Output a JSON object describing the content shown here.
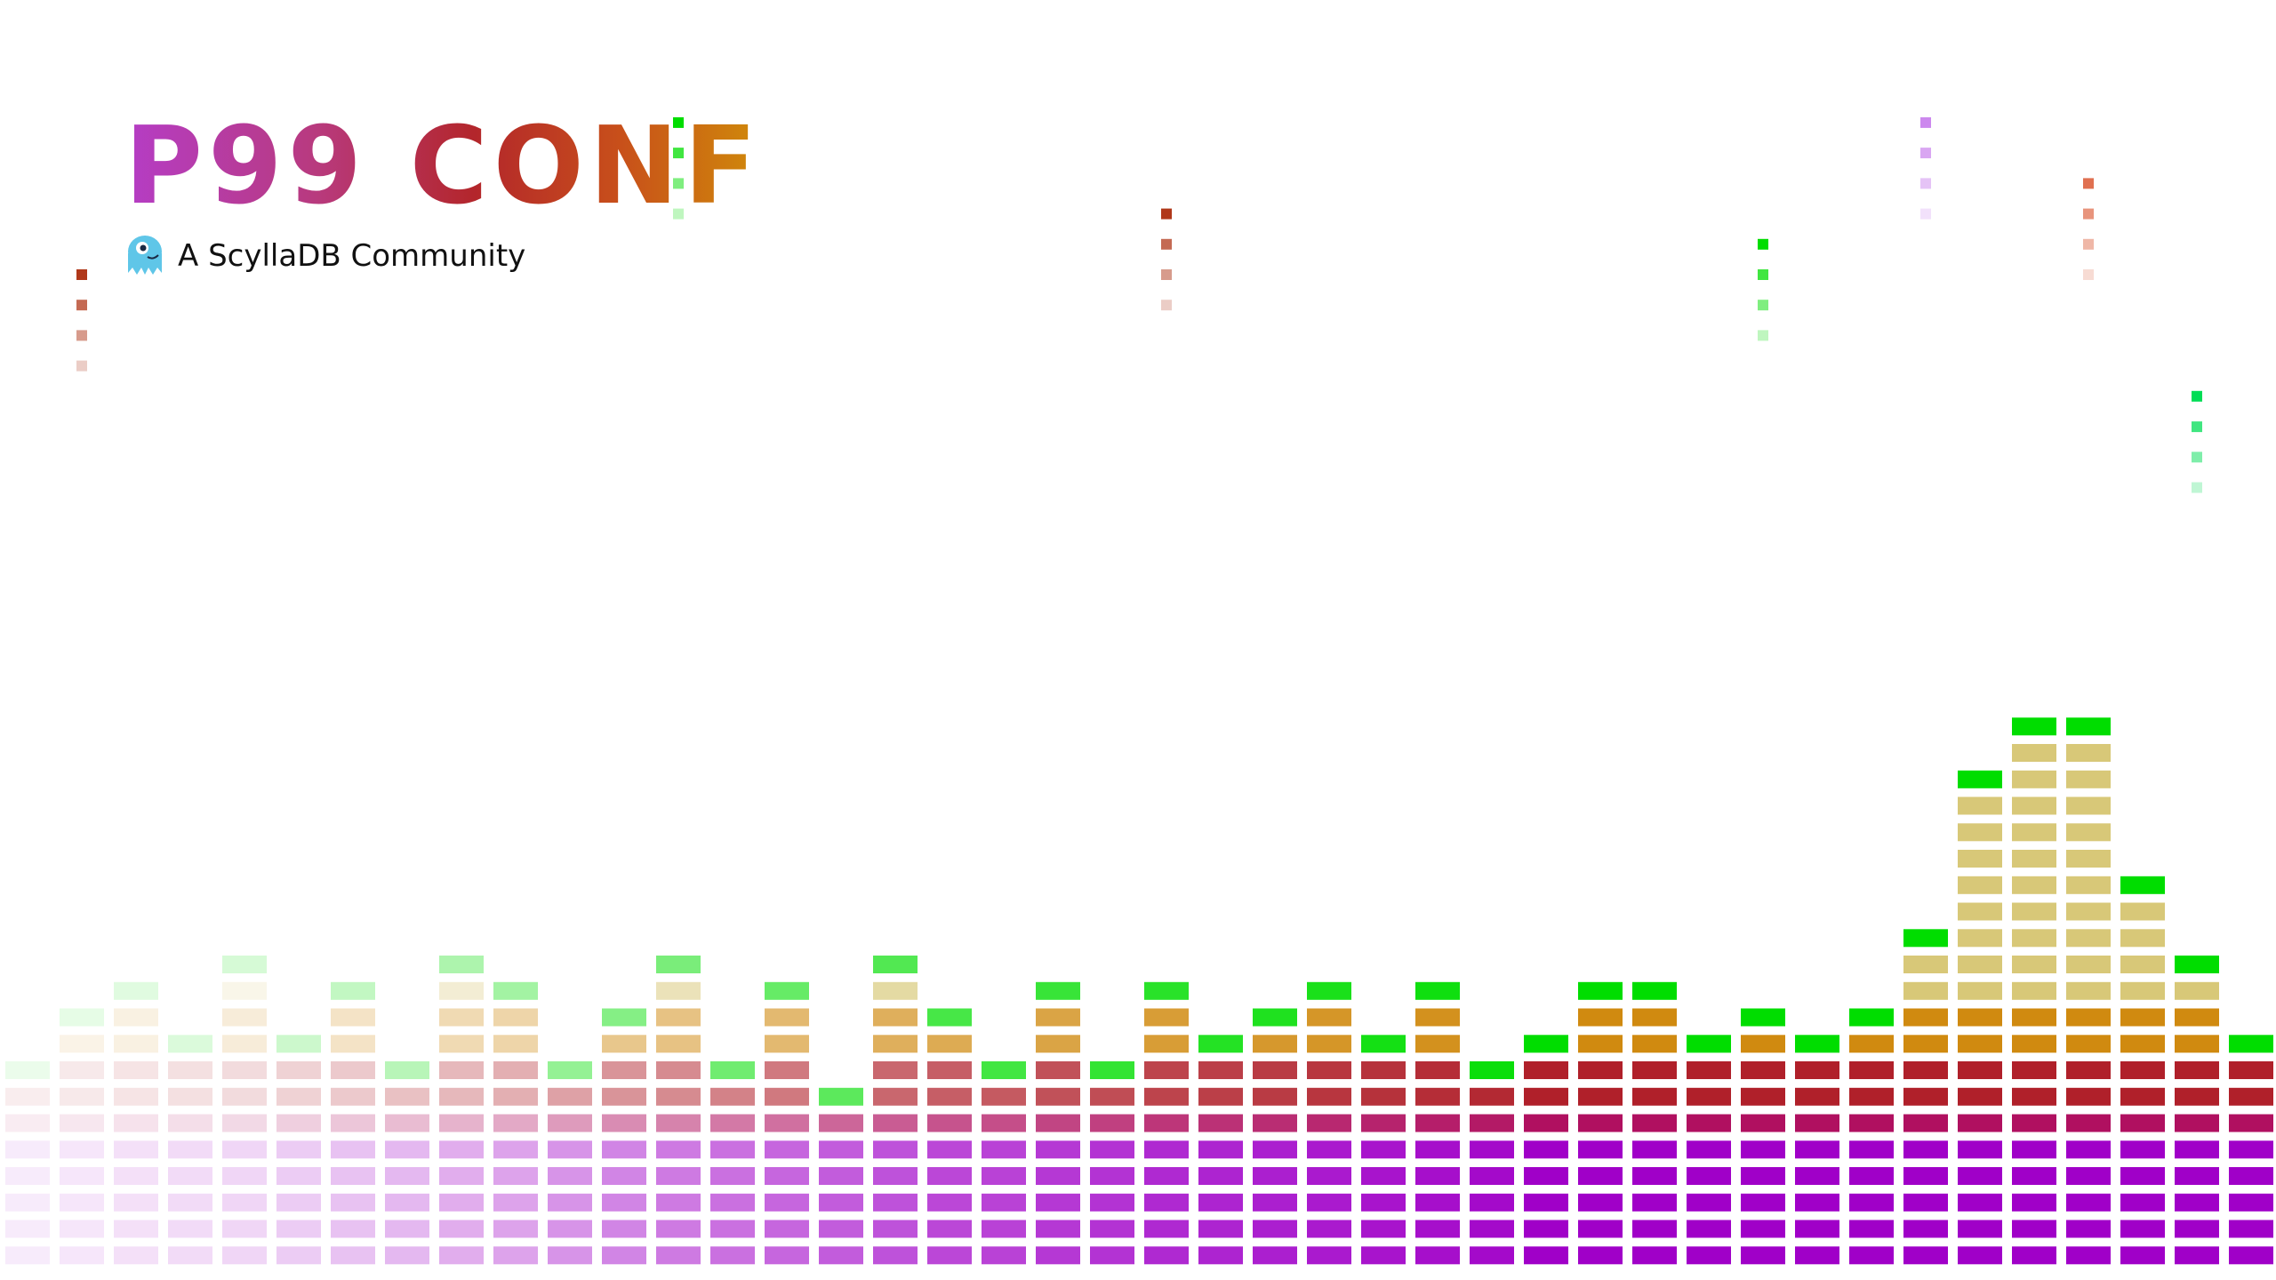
{
  "brand": {
    "logo": "P99 CONF",
    "tagline": "A ScyllaDB Community",
    "mascot_icon": "scylla-monster-icon"
  },
  "colors": {
    "peak_green": "#00dd00",
    "purple": "#a000c8",
    "magenta": "#b01060",
    "red": "#b0202a",
    "orange": "#d08a10",
    "tan": "#d8c878"
  },
  "equalizer": {
    "segments_per_column": [
      8,
      10,
      11,
      9,
      12,
      9,
      11,
      8,
      12,
      11,
      8,
      10,
      12,
      8,
      11,
      7,
      12,
      10,
      8,
      11,
      8,
      11,
      9,
      10,
      11,
      9,
      11,
      8,
      9,
      11,
      11,
      9,
      10,
      9,
      10,
      13,
      19,
      21,
      21,
      15,
      12,
      9
    ],
    "intensity": [
      0.08,
      0.1,
      0.12,
      0.14,
      0.16,
      0.2,
      0.24,
      0.28,
      0.32,
      0.36,
      0.42,
      0.48,
      0.52,
      0.56,
      0.6,
      0.64,
      0.68,
      0.72,
      0.74,
      0.78,
      0.8,
      0.84,
      0.86,
      0.88,
      0.9,
      0.92,
      0.94,
      0.96,
      1,
      1,
      1,
      1,
      1,
      1,
      1,
      1,
      1,
      1,
      1,
      1,
      1,
      1
    ]
  },
  "falling_particles": [
    {
      "column": 1,
      "level": 33,
      "color": "#b0381a"
    },
    {
      "column": 12,
      "level": 38,
      "color": "#00dd00"
    },
    {
      "column": 21,
      "level": 35,
      "color": "#b0381a"
    },
    {
      "column": 32,
      "level": 34,
      "color": "#00dd00"
    },
    {
      "column": 35,
      "level": 38,
      "color": "#cc88ee"
    },
    {
      "column": 38,
      "level": 36,
      "color": "#e07050"
    },
    {
      "column": 40,
      "level": 29,
      "color": "#00dd55"
    }
  ]
}
